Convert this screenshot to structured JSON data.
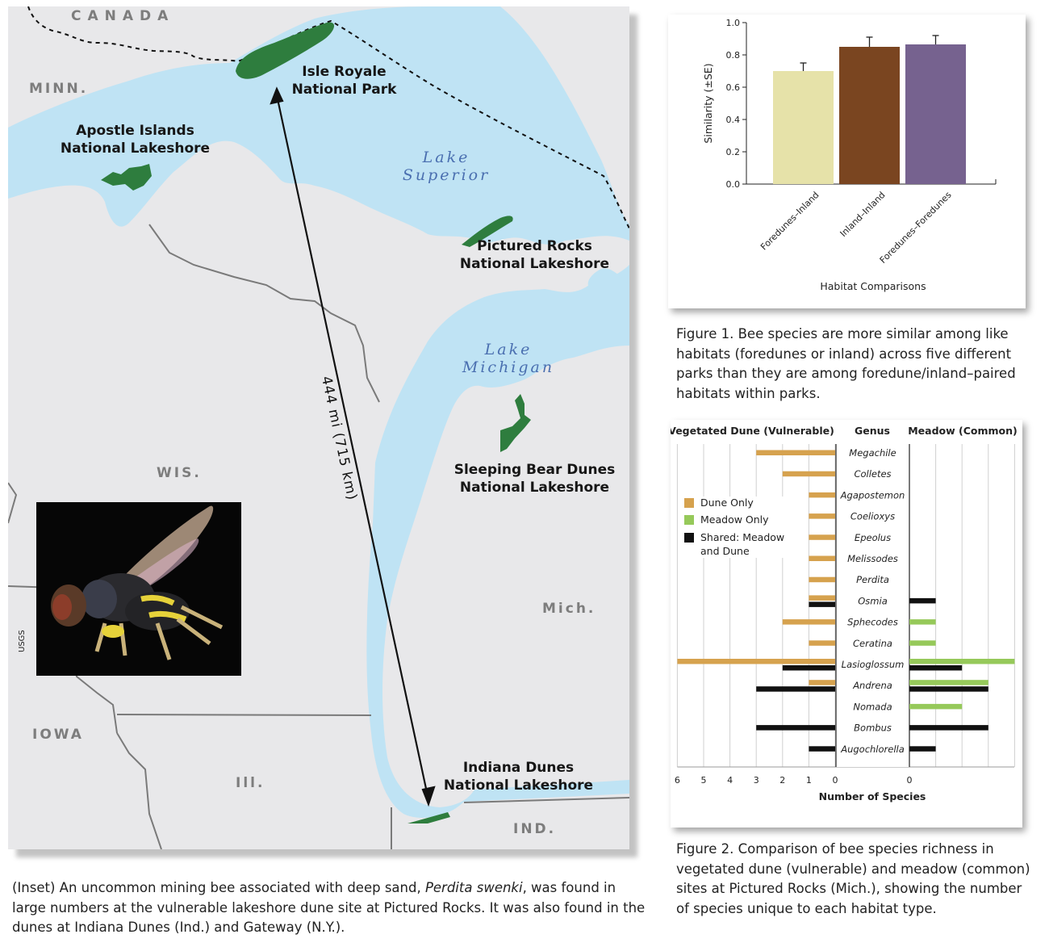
{
  "colors": {
    "water": "#bfe3f4",
    "land": "#e8e8ea",
    "park": "#2e7d3e",
    "border": "#7a7a7a",
    "dune_only": "#d6a24e",
    "meadow_only": "#96c95a",
    "shared": "#111111",
    "fig1_bars": [
      "#e6e2a9",
      "#7a4520",
      "#76628f"
    ]
  },
  "map": {
    "country_label": "CANADA",
    "states": [
      "MINN.",
      "WIS.",
      "IOWA",
      "Ill.",
      "IND.",
      "Mich."
    ],
    "parks": [
      {
        "line1": "Isle Royale",
        "line2": "National Park"
      },
      {
        "line1": "Apostle Islands",
        "line2": "National Lakeshore"
      },
      {
        "line1": "Pictured Rocks",
        "line2": "National Lakeshore"
      },
      {
        "line1": "Sleeping Bear Dunes",
        "line2": "National Lakeshore"
      },
      {
        "line1": "Indiana Dunes",
        "line2": "National Lakeshore"
      }
    ],
    "lakes": [
      {
        "line1": "Lake",
        "line2": "Superior"
      },
      {
        "line1": "Lake",
        "line2": "Michigan"
      }
    ],
    "distance_label": "444 mi (715 km)",
    "photo_credit": "USGS"
  },
  "inset_caption": {
    "before": "(Inset) An uncommon mining bee associated with deep sand, ",
    "species": "Perdita swenki",
    "after": ", was found in large numbers at the vulnerable lakeshore dune site at Pictured Rocks. It was also found in the dunes at Indiana Dunes (Ind.) and Gateway (N.Y.)."
  },
  "figure1_caption": "Figure 1. Bee species are more similar among like habitats (foredunes or inland) across five different parks than they are among foredune/inland–paired habitats within parks.",
  "figure2_caption": "Figure 2. Comparison of bee species richness in vegetated dune (vulnerable) and meadow (common) sites at Pictured Rocks (Mich.), showing the number of species unique to each habitat type.",
  "chart_data": [
    {
      "type": "bar",
      "categories": [
        "Foredunes–Inland",
        "Inland–Inland",
        "Foredunes–Foredunes"
      ],
      "values": [
        0.7,
        0.85,
        0.865
      ],
      "error": [
        0.05,
        0.06,
        0.055
      ],
      "xlabel": "Habitat Comparisons",
      "ylabel": "Similarity (±SE)",
      "ylim": [
        0,
        1.0
      ],
      "yticks": [
        "0.0",
        "0.2",
        "0.4",
        "0.6",
        "0.8",
        "1.0"
      ]
    },
    {
      "type": "bar",
      "orientation": "horizontal",
      "left_header": "Vegetated Dune (Vulnerable)",
      "center_header": "Genus",
      "right_header": "Meadow (Common)",
      "xlabel": "Number of Species",
      "left_ticks": [
        "6",
        "5",
        "4",
        "3",
        "2",
        "1",
        "0"
      ],
      "right_ticks": [
        "0"
      ],
      "legend": [
        "Dune Only",
        "Meadow Only",
        "Shared: Meadow and Dune"
      ],
      "legend_placement": "upper-left",
      "genera": [
        "Megachile",
        "Colletes",
        "Agapostemon",
        "Coelioxys",
        "Epeolus",
        "Melissodes",
        "Perdita",
        "Osmia",
        "Sphecodes",
        "Ceratina",
        "Lasioglossum",
        "Andrena",
        "Nomada",
        "Bombus",
        "Augochlorella"
      ],
      "series": [
        {
          "name": "Dune Only",
          "values": [
            3,
            2,
            1,
            1,
            1,
            1,
            1,
            1,
            2,
            1,
            6,
            1,
            0,
            0,
            0
          ]
        },
        {
          "name": "Shared: Meadow and Dune",
          "values": [
            0,
            0,
            0,
            0,
            0,
            0,
            0,
            1,
            0,
            0,
            2,
            3,
            0,
            3,
            1
          ]
        },
        {
          "name": "Meadow Only",
          "values": [
            0,
            0,
            0,
            0,
            0,
            0,
            0,
            0,
            1,
            1,
            4,
            3,
            2,
            0,
            0
          ]
        },
        {
          "name": "Shared: Meadow and Dune",
          "values": [
            0,
            0,
            0,
            0,
            0,
            0,
            0,
            1,
            0,
            0,
            2,
            3,
            0,
            3,
            1
          ]
        }
      ]
    }
  ]
}
